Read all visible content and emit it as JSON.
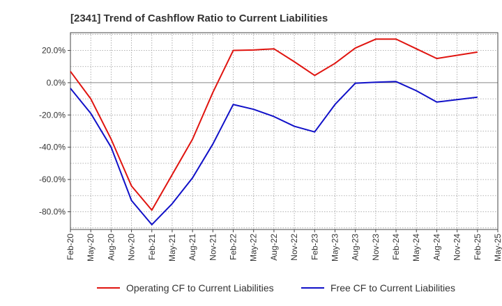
{
  "chart_data": {
    "type": "line",
    "title": "[2341]  Trend of Cashflow Ratio to Current Liabilities",
    "xlabel": "",
    "ylabel": "",
    "x": [
      "Feb-20",
      "May-20",
      "Aug-20",
      "Nov-20",
      "Feb-21",
      "May-21",
      "Aug-21",
      "Nov-21",
      "Feb-22",
      "May-22",
      "Aug-22",
      "Nov-22",
      "Feb-23",
      "May-23",
      "Aug-23",
      "Nov-23",
      "Feb-24",
      "May-24",
      "Aug-24",
      "Nov-24",
      "Feb-25",
      "May-25"
    ],
    "x_ticks": [
      "Feb-20",
      "May-20",
      "Aug-20",
      "Nov-20",
      "Feb-21",
      "May-21",
      "Aug-21",
      "Nov-21",
      "Feb-22",
      "May-22",
      "Aug-22",
      "Nov-22",
      "Feb-23",
      "May-23",
      "Aug-23",
      "Nov-23",
      "Feb-24",
      "May-24",
      "Aug-24",
      "Nov-24",
      "Feb-25",
      "May-25"
    ],
    "ylim": [
      -91,
      31
    ],
    "y_ticks": [
      20,
      0,
      -20,
      -40,
      -60,
      -80
    ],
    "y_tick_labels": [
      "20.0%",
      "0.0%",
      "-20.0%",
      "-40.0%",
      "-60.0%",
      "-80.0%"
    ],
    "grid": true,
    "legend_position": "bottom",
    "series": [
      {
        "name": "Operating CF to Current Liabilities",
        "color": "#e0140f",
        "values": [
          7,
          -10,
          -35,
          -64,
          -79,
          -57,
          -35,
          -6,
          20,
          20.3,
          21,
          13,
          4.5,
          12,
          21.5,
          27,
          27,
          21,
          15,
          17,
          19,
          null
        ]
      },
      {
        "name": "Free CF to Current Liabilities",
        "color": "#1010c8",
        "values": [
          -3.5,
          -19,
          -40,
          -73,
          -88,
          -75,
          -59,
          -38,
          -13.5,
          -16.5,
          -21,
          -27,
          -30.5,
          -13.5,
          -0.3,
          0.3,
          0.7,
          -5,
          -12,
          -10.5,
          -9,
          null
        ]
      }
    ]
  }
}
